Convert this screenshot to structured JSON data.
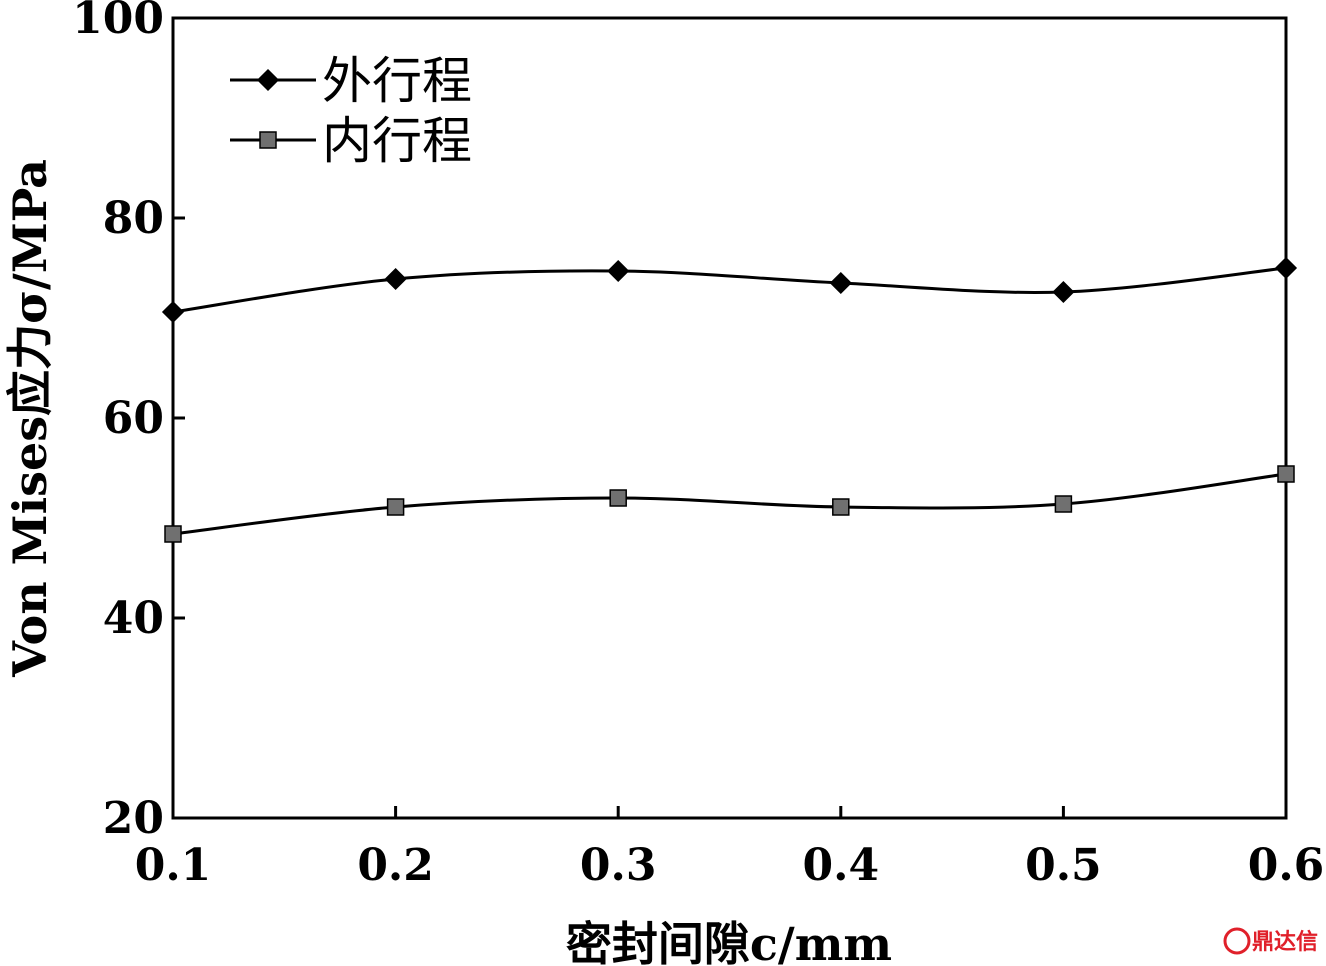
{
  "chart_data": {
    "type": "line",
    "title": "",
    "xlabel": "密封间隙c/mm",
    "ylabel": "Von Mises应力σ/MPa",
    "x": [
      0.1,
      0.2,
      0.3,
      0.4,
      0.5,
      0.6
    ],
    "xlim": [
      0.1,
      0.6
    ],
    "ylim": [
      20,
      100
    ],
    "xticks": [
      "0.1",
      "0.2",
      "0.3",
      "0.4",
      "0.5",
      "0.6"
    ],
    "yticks": [
      "20",
      "40",
      "60",
      "80",
      "100"
    ],
    "grid": false,
    "legend_position": "top-left",
    "series": [
      {
        "name": "外行程",
        "marker": "diamond",
        "color": "#000000",
        "values": [
          70.6,
          73.9,
          74.7,
          73.5,
          72.6,
          75.0
        ]
      },
      {
        "name": "内行程",
        "marker": "square",
        "color": "#707070",
        "values": [
          48.4,
          51.1,
          52.0,
          51.1,
          51.4,
          54.4
        ]
      }
    ]
  },
  "watermark": {
    "text": "鼎达信",
    "color": "#e0202a"
  }
}
